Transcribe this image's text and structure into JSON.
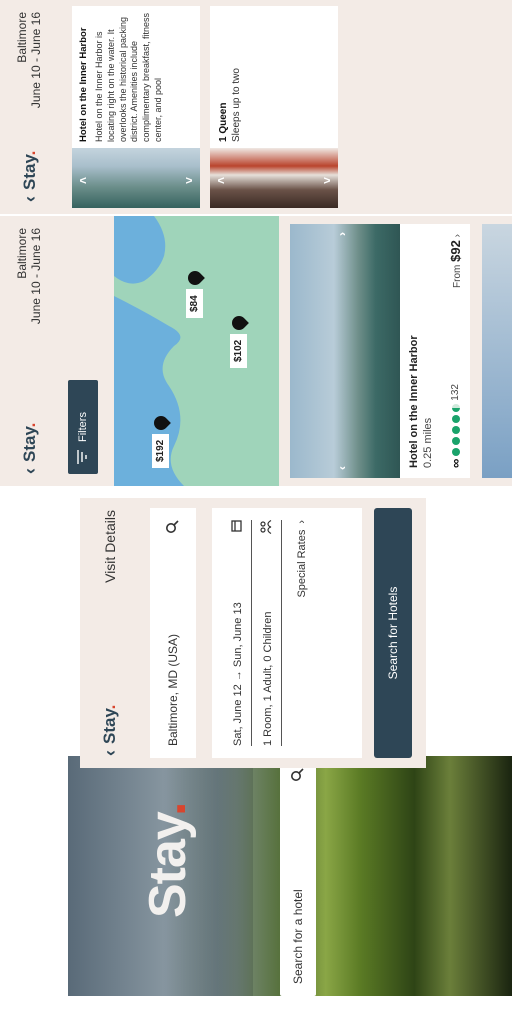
{
  "landing": {
    "logo_text": "Stay",
    "logo_dot": ".",
    "search_placeholder": "Search for a hotel",
    "search_icon": "search-icon"
  },
  "visit": {
    "brand": "Stay",
    "brand_dot": ".",
    "title": "Visit Details",
    "location_value": "Baltimore, MD (USA)",
    "dates": "Sat, June 12 → Sun, June 13",
    "guests": "1 Room, 1 Adult, 0 Children",
    "special_rates": "Special Rates",
    "cta": "Search for Hotels"
  },
  "results": {
    "brand": "Stay",
    "brand_dot": ".",
    "city": "Baltimore",
    "dates": "June 10 - June 16",
    "filters_label": "Filters",
    "pins": [
      "$192",
      "$84",
      "$102"
    ],
    "hotel_name": "Hotel on the Inner Harbor",
    "distance": "0.25 miles",
    "review_count": "132",
    "rating_bubbles": 4.5,
    "price_prefix": "From",
    "price": "$92"
  },
  "detail": {
    "brand": "Stay",
    "brand_dot": ".",
    "city": "Baltimore",
    "dates": "June 10 - June 16",
    "hotel_name": "Hotel on the Inner Harbor",
    "description": "Hotel on the Inner Harbor is locating right on the water. It overlooks the historical packing district. Amenities include complimentary breakfast, fitness center, and pool",
    "room_type": "1 Queen",
    "room_capacity": "Sleeps up to two"
  },
  "colors": {
    "brand_navy": "#2e4656",
    "accent_red": "#d8452e",
    "panel_bg": "#f3ebe6",
    "map_green": "#9fd4ba",
    "rating_green": "#1aa36b"
  }
}
